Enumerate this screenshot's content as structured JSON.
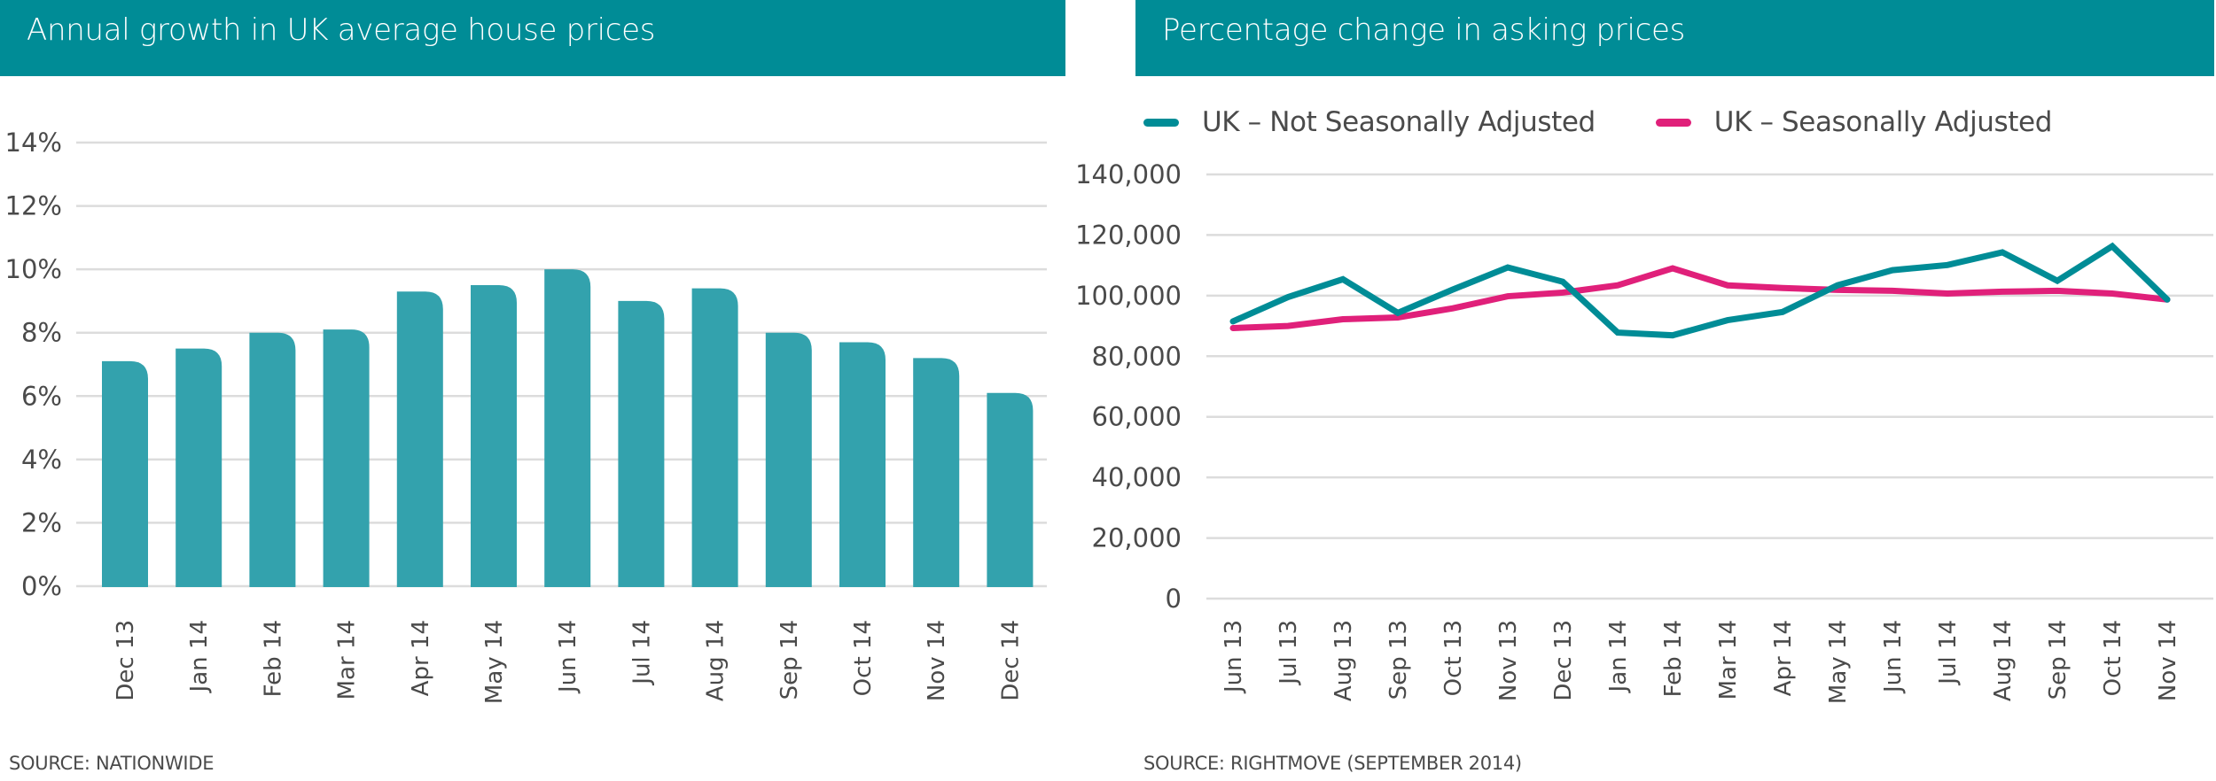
{
  "chart_data": [
    {
      "type": "bar",
      "title": "Annual growth in UK average house prices",
      "source": "SOURCE: NATIONWIDE",
      "xlabel": "",
      "ylabel": "",
      "categories": [
        "Dec 13",
        "Jan 14",
        "Feb 14",
        "Mar 14",
        "Apr 14",
        "May 14",
        "Jun 14",
        "Jul 14",
        "Aug 14",
        "Sep 14",
        "Oct 14",
        "Nov 14",
        "Dec 14"
      ],
      "values": [
        7.1,
        7.5,
        8.0,
        8.1,
        9.3,
        9.5,
        10.0,
        9.0,
        9.4,
        8.0,
        7.7,
        7.2,
        6.1
      ],
      "value_unit": "%",
      "ylim": [
        0,
        14
      ],
      "yticks": [
        0,
        2,
        4,
        6,
        8,
        10,
        12,
        14
      ],
      "ytick_labels": [
        "0%",
        "2%",
        "4%",
        "6%",
        "8%",
        "10%",
        "12%",
        "14%"
      ],
      "grid": true,
      "colors": {
        "bar": "#33a2ad",
        "header": "#008c96",
        "grid": "#dcdcdc"
      }
    },
    {
      "type": "line",
      "title": "Percentage change in asking prices",
      "source": "SOURCE: RIGHTMOVE (SEPTEMBER 2014)",
      "xlabel": "",
      "ylabel": "",
      "categories": [
        "Jun 13",
        "Jul 13",
        "Aug 13",
        "Sep 13",
        "Oct 13",
        "Nov 13",
        "Dec 13",
        "Jan 14",
        "Feb 14",
        "Mar 14",
        "Apr 14",
        "May 14",
        "Jun 14",
        "Jul 14",
        "Aug 14",
        "Sep 14",
        "Oct 14",
        "Nov 14"
      ],
      "series": [
        {
          "name": "UK – Not Seasonally Adjusted",
          "color": "#008c96",
          "values": [
            91500,
            99500,
            105400,
            94300,
            102000,
            109300,
            104600,
            87800,
            86900,
            91900,
            94600,
            103400,
            108400,
            110100,
            114300,
            104900,
            116300,
            98700
          ]
        },
        {
          "name": "UK – Seasonally Adjusted",
          "color": "#e0207a",
          "values": [
            89300,
            90000,
            92200,
            92800,
            95800,
            99800,
            101000,
            103400,
            109000,
            103400,
            102500,
            101900,
            101600,
            100700,
            101300,
            101600,
            100700,
            98700
          ]
        }
      ],
      "ylim": [
        0,
        140000
      ],
      "yticks": [
        0,
        20000,
        40000,
        60000,
        80000,
        100000,
        120000,
        140000
      ],
      "ytick_labels": [
        "0",
        "20,000",
        "40,000",
        "60,000",
        "80,000",
        "100,000",
        "120,000",
        "140,000"
      ],
      "grid": true,
      "legend_position": "top",
      "colors": {
        "header": "#008c96",
        "grid": "#dcdcdc"
      }
    }
  ]
}
